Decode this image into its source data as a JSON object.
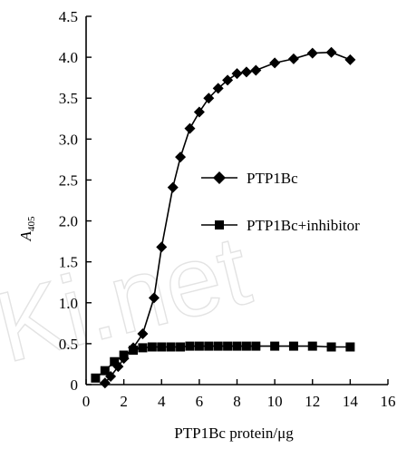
{
  "chart_data": {
    "type": "line",
    "title": "",
    "xlabel": "PTP1Bc protein/μg",
    "ylabel_main": "A",
    "ylabel_sub": "405",
    "xlim": [
      0,
      16
    ],
    "ylim": [
      0,
      4.5
    ],
    "x_ticks": [
      0,
      2,
      4,
      6,
      8,
      10,
      12,
      14,
      16
    ],
    "y_ticks": [
      "0",
      "0.5",
      "1.0",
      "1.5",
      "2.0",
      "2.5",
      "3.0",
      "3.5",
      "4.0",
      "4.5"
    ],
    "y_tick_values": [
      0,
      0.5,
      1.0,
      1.5,
      2.0,
      2.5,
      3.0,
      3.5,
      4.0,
      4.5
    ],
    "grid": false,
    "legend_position": "right",
    "series": [
      {
        "name": "PTP1Bc",
        "marker": "diamond",
        "x": [
          1.0,
          1.3,
          1.7,
          2.0,
          2.5,
          3.0,
          3.6,
          4.0,
          4.6,
          5.0,
          5.5,
          6.0,
          6.5,
          7.0,
          7.5,
          8.0,
          8.5,
          9.0,
          10.0,
          11.0,
          12.0,
          13.0,
          14.0
        ],
        "y": [
          0.02,
          0.1,
          0.22,
          0.32,
          0.45,
          0.62,
          1.06,
          1.68,
          2.41,
          2.78,
          3.13,
          3.33,
          3.5,
          3.62,
          3.72,
          3.8,
          3.82,
          3.84,
          3.93,
          3.98,
          4.05,
          4.06,
          3.97
        ]
      },
      {
        "name": "PTP1Bc+inhibitor",
        "marker": "square",
        "x": [
          0.5,
          1.0,
          1.5,
          2.0,
          2.5,
          3.0,
          3.5,
          4.0,
          4.5,
          5.0,
          5.5,
          6.0,
          6.5,
          7.0,
          7.5,
          8.0,
          8.5,
          9.0,
          10.0,
          11.0,
          12.0,
          13.0,
          14.0
        ],
        "y": [
          0.08,
          0.17,
          0.28,
          0.36,
          0.42,
          0.45,
          0.46,
          0.46,
          0.46,
          0.46,
          0.47,
          0.47,
          0.47,
          0.47,
          0.47,
          0.47,
          0.47,
          0.47,
          0.47,
          0.47,
          0.47,
          0.46,
          0.46
        ]
      }
    ]
  },
  "watermark": "Ki.net"
}
